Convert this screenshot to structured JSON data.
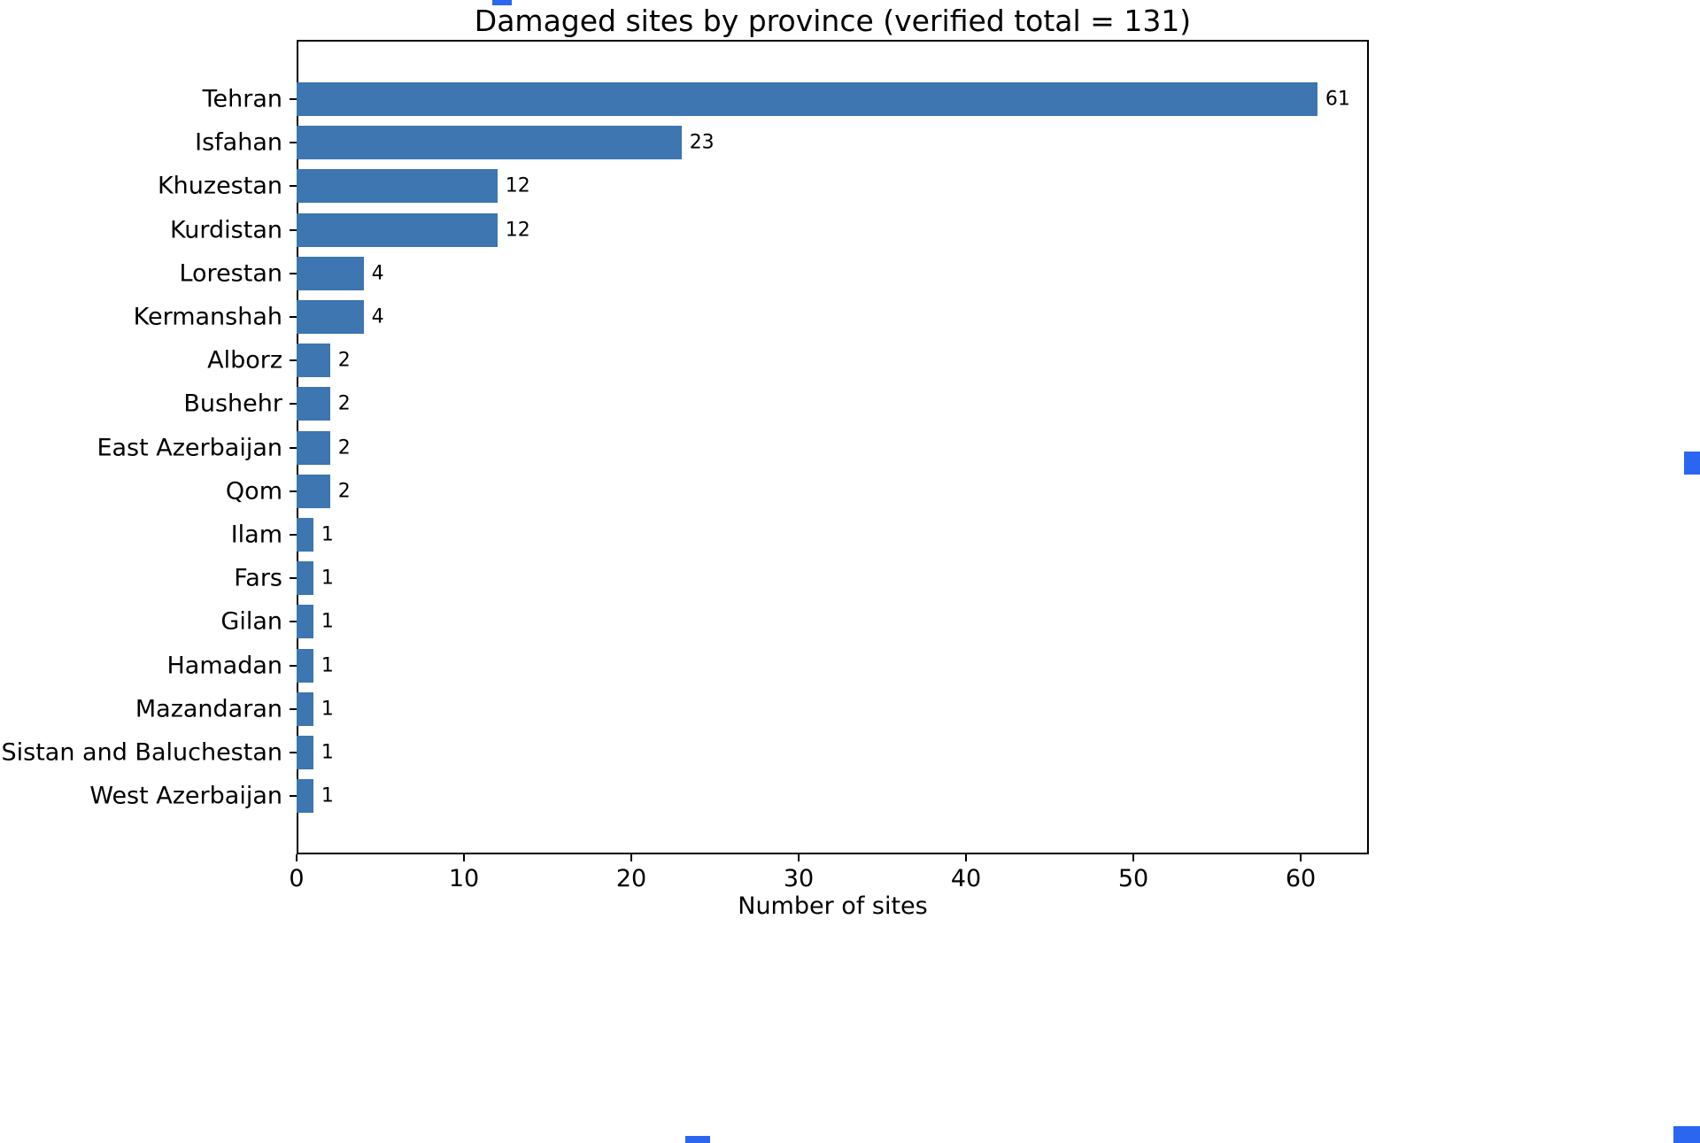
{
  "figure": {
    "title": "Damaged sites by province (verified total = 131)",
    "xlabel": "Number of sites"
  },
  "chart_data": {
    "type": "bar",
    "orientation": "horizontal",
    "title": "Damaged sites by province (verified total = 131)",
    "xlabel": "Number of sites",
    "ylabel": "",
    "categories": [
      "Tehran",
      "Isfahan",
      "Khuzestan",
      "Kurdistan",
      "Lorestan",
      "Kermanshah",
      "Alborz",
      "Bushehr",
      "East Azerbaijan",
      "Qom",
      "Ilam",
      "Fars",
      "Gilan",
      "Hamadan",
      "Mazandaran",
      "Sistan and Baluchestan",
      "West Azerbaijan"
    ],
    "values": [
      61,
      23,
      12,
      12,
      4,
      4,
      2,
      2,
      2,
      2,
      1,
      1,
      1,
      1,
      1,
      1,
      1
    ],
    "value_labels": [
      "61",
      "23",
      "12",
      "12",
      "4",
      "4",
      "2",
      "2",
      "2",
      "2",
      "1",
      "1",
      "1",
      "1",
      "1",
      "1",
      "1"
    ],
    "xticks": [
      0,
      10,
      20,
      30,
      40,
      50,
      60
    ],
    "xlim": [
      0,
      64
    ],
    "grid": false,
    "legend": null,
    "bar_color": "#3d76b0",
    "verified_total": 131
  },
  "artifacts": {
    "color": "#2a66f0"
  }
}
